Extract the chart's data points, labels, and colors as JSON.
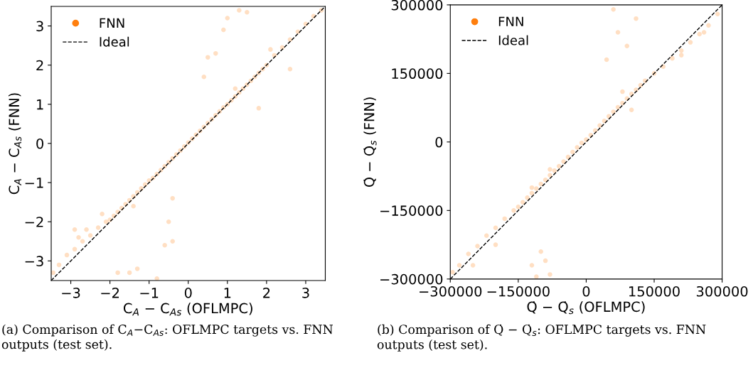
{
  "chart_data": [
    {
      "type": "scatter",
      "xlabel": "C$_{A}$ − C$_{As}$ (OFLMPC)",
      "ylabel": "C$_{A}$ − C$_{As}$ (FNN)",
      "xlim": [
        -3.5,
        3.5
      ],
      "ylim": [
        -3.5,
        3.5
      ],
      "xticks": [
        -3,
        -2,
        -1,
        0,
        1,
        2,
        3
      ],
      "yticks": [
        -3,
        -2,
        -1,
        0,
        1,
        2,
        3
      ],
      "legend": "top left",
      "grid": false,
      "annotations": [
        "(a) Comparison of C$_{A}$−C$_{As}$: OFLMPC targets vs. FNN outputs (test set)."
      ],
      "series": [
        {
          "name": "FNN",
          "type": "scatter",
          "color": "#ff7f0e",
          "marker": "circle",
          "x": [
            -3.45,
            -3.3,
            -3.1,
            -2.9,
            -2.7,
            -2.5,
            -2.3,
            -2.1,
            -2.0,
            -1.9,
            -1.8,
            -1.7,
            -1.6,
            -1.5,
            -1.4,
            -1.3,
            -1.2,
            -1.1,
            -1.0,
            -0.9,
            -0.8,
            -0.7,
            -0.6,
            -0.5,
            -0.4,
            -0.3,
            -0.2,
            -0.1,
            0.0,
            0.1,
            0.2,
            0.3,
            0.4,
            0.5,
            0.6,
            0.7,
            0.8,
            0.9,
            1.0,
            1.1,
            1.2,
            1.3,
            1.4,
            1.5,
            1.6,
            1.7,
            1.8,
            1.9,
            2.0,
            2.2,
            2.4,
            2.6,
            2.8,
            3.0,
            3.2,
            3.4,
            -2.8,
            -2.6,
            -2.2,
            -1.4,
            0.9,
            0.7,
            1.0,
            1.3,
            1.5,
            0.4,
            0.5,
            2.6,
            1.8,
            -0.5,
            -0.4,
            -0.6,
            -1.5,
            -1.8,
            -1.3,
            -0.8,
            -0.4,
            -2.9,
            2.1,
            1.2
          ],
          "values": [
            -3.3,
            -3.1,
            -2.85,
            -2.7,
            -2.5,
            -2.35,
            -2.15,
            -2.0,
            -1.95,
            -1.85,
            -1.75,
            -1.65,
            -1.55,
            -1.45,
            -1.35,
            -1.25,
            -1.15,
            -1.05,
            -0.95,
            -0.88,
            -0.78,
            -0.68,
            -0.58,
            -0.48,
            -0.38,
            -0.28,
            -0.18,
            -0.08,
            0.02,
            0.12,
            0.22,
            0.32,
            0.42,
            0.52,
            0.62,
            0.72,
            0.82,
            0.92,
            1.0,
            1.1,
            1.2,
            1.3,
            1.4,
            1.5,
            1.6,
            1.7,
            1.8,
            1.9,
            2.0,
            2.25,
            2.45,
            2.65,
            2.85,
            3.05,
            3.25,
            3.4,
            -2.4,
            -2.2,
            -1.8,
            -1.6,
            2.9,
            2.3,
            3.2,
            3.4,
            3.35,
            1.7,
            2.2,
            1.9,
            0.9,
            -2.0,
            -2.5,
            -2.6,
            -3.3,
            -3.3,
            -3.2,
            -3.45,
            -1.4,
            -2.2,
            2.4,
            1.4
          ]
        },
        {
          "name": "Ideal",
          "type": "line",
          "color": "#000000",
          "line_style": "dashed",
          "x": [
            -3.5,
            3.5
          ],
          "values": [
            -3.5,
            3.5
          ]
        }
      ]
    },
    {
      "type": "scatter",
      "xlabel": "Q̇ − Q̇$_{s}$ (OFLMPC)",
      "ylabel": "Q̇ − Q̇$_{s}$ (FNN)",
      "xlim": [
        -300000,
        300000
      ],
      "ylim": [
        -300000,
        300000
      ],
      "xticks": [
        -300000,
        -150000,
        0,
        150000,
        300000
      ],
      "yticks": [
        -300000,
        -150000,
        0,
        150000,
        300000
      ],
      "legend": "top left",
      "grid": false,
      "annotations": [
        "(b) Comparison of Q̇ − Q̇$_{s}$: OFLMPC targets vs. FNN outputs (test set)."
      ],
      "series": [
        {
          "name": "FNN",
          "type": "scatter",
          "color": "#ff7f0e",
          "marker": "circle",
          "x": [
            -295000,
            -280000,
            -260000,
            -240000,
            -220000,
            -200000,
            -180000,
            -160000,
            -150000,
            -140000,
            -130000,
            -120000,
            -110000,
            -100000,
            -90000,
            -80000,
            -70000,
            -60000,
            -50000,
            -40000,
            -30000,
            -20000,
            -10000,
            0,
            10000,
            20000,
            30000,
            40000,
            50000,
            60000,
            70000,
            80000,
            90000,
            100000,
            110000,
            120000,
            130000,
            150000,
            170000,
            190000,
            210000,
            230000,
            250000,
            270000,
            290000,
            -250000,
            -200000,
            -120000,
            -80000,
            80000,
            100000,
            70000,
            90000,
            110000,
            60000,
            45000,
            -100000,
            -90000,
            -120000,
            -110000,
            -80000,
            210000,
            260000
          ],
          "values": [
            -285000,
            -270000,
            -245000,
            -228000,
            -205000,
            -188000,
            -168000,
            -150000,
            -142000,
            -132000,
            -122000,
            -112000,
            -102000,
            -92000,
            -83000,
            -73000,
            -63000,
            -53000,
            -43000,
            -33000,
            -22000,
            -12000,
            -2000,
            5000,
            15000,
            25000,
            36000,
            46000,
            56000,
            66000,
            76000,
            85000,
            95000,
            105000,
            114000,
            124000,
            134000,
            150000,
            165000,
            183000,
            200000,
            218000,
            236000,
            255000,
            280000,
            -270000,
            -225000,
            -100000,
            -60000,
            110000,
            70000,
            240000,
            210000,
            270000,
            290000,
            180000,
            -240000,
            -260000,
            -270000,
            -295000,
            -290000,
            190000,
            240000
          ]
        },
        {
          "name": "Ideal",
          "type": "line",
          "color": "#000000",
          "line_style": "dashed",
          "x": [
            -300000,
            300000
          ],
          "values": [
            -300000,
            300000
          ]
        }
      ]
    }
  ]
}
